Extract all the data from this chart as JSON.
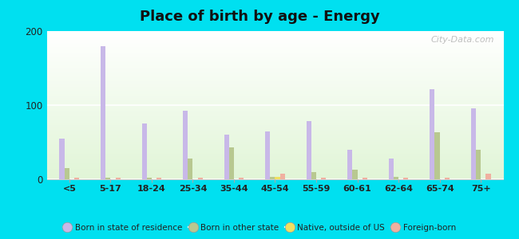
{
  "title": "Place of birth by age - Energy",
  "categories": [
    "<5",
    "5-17",
    "18-24",
    "25-34",
    "35-44",
    "45-54",
    "55-59",
    "60-61",
    "62-64",
    "65-74",
    "75+"
  ],
  "series": {
    "Born in state of residence": [
      55,
      180,
      75,
      93,
      60,
      65,
      78,
      40,
      28,
      122,
      96
    ],
    "Born in other state": [
      15,
      2,
      2,
      28,
      43,
      3,
      10,
      13,
      3,
      63,
      40
    ],
    "Native, outside of US": [
      0,
      0,
      0,
      0,
      0,
      3,
      0,
      0,
      0,
      0,
      0
    ],
    "Foreign-born": [
      2,
      2,
      2,
      2,
      2,
      8,
      2,
      2,
      2,
      2,
      8
    ]
  },
  "colors": {
    "Born in state of residence": "#c8b8e8",
    "Born in other state": "#b8c890",
    "Native, outside of US": "#f0e060",
    "Foreign-born": "#f0b0a0"
  },
  "ylim": [
    0,
    200
  ],
  "yticks": [
    0,
    100,
    200
  ],
  "outer_background": "#00e0f0",
  "bar_width": 0.12,
  "title_fontsize": 13
}
